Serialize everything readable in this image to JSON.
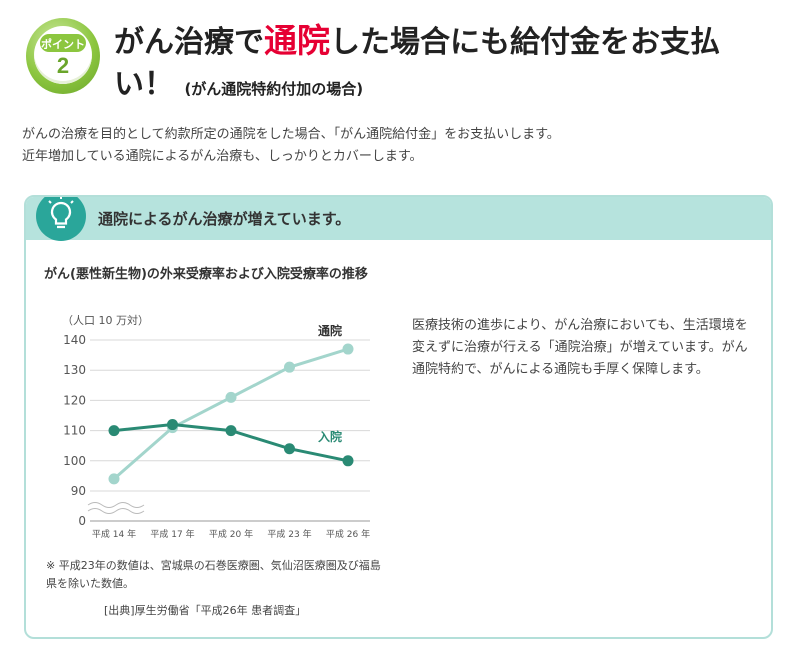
{
  "header": {
    "badge_label": "ポイント",
    "badge_number": "2",
    "title_part1": "がん治療で",
    "title_highlight": "通院",
    "title_part2": "した場合にも給付金をお支払い！",
    "title_sub": "(がん通院特約付加の場合)"
  },
  "intro": {
    "line1": "がんの治療を目的として約款所定の通院をした場合、「がん通院給付金」をお支払いします。",
    "line2": "近年増加している通院によるがん治療も、しっかりとカバーします。"
  },
  "infobox": {
    "title": "通院によるがん治療が増えています。",
    "description": "医療技術の進歩により、がん治療においても、生活環境を変えずに治療が行える「通院治療」が増えています。がん通院特約で、がんによる通院も手厚く保障します。",
    "note": "※ 平成23年の数値は、宮城県の石巻医療圏、気仙沼医療圏及び福島県を除いた数値。",
    "source": "[出典]厚生労働省「平成26年 患者調査」"
  },
  "colors": {
    "accent_red": "#e60033",
    "badge_green": "#8cc63f",
    "box_teal": "#b6e3dd",
    "series_outpatient": "#a3d5cc",
    "series_inpatient": "#2a8a74"
  },
  "chart_data": {
    "type": "line",
    "title": "がん(悪性新生物)の外来受療率および入院受療率の推移",
    "ylabel": "（人口 10 万対）",
    "xlabel": "",
    "categories": [
      "平成 14 年",
      "平成 17 年",
      "平成 20 年",
      "平成 23 年",
      "平成 26 年"
    ],
    "yticks": [
      0,
      90,
      100,
      110,
      120,
      130,
      140
    ],
    "ylim": [
      0,
      140
    ],
    "axis_break": true,
    "grid": true,
    "series": [
      {
        "name": "通院",
        "values": [
          94,
          111,
          121,
          131,
          137
        ],
        "color": "#a3d5cc"
      },
      {
        "name": "入院",
        "values": [
          110,
          112,
          110,
          104,
          100
        ],
        "color": "#2a8a74"
      }
    ]
  }
}
